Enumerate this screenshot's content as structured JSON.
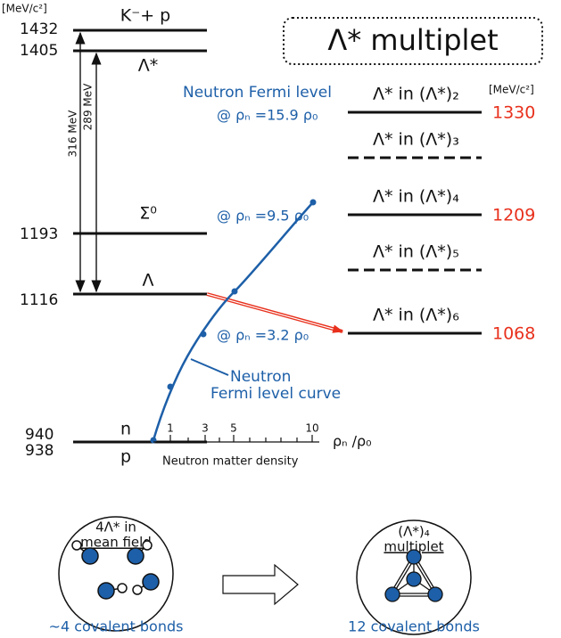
{
  "unit_left": "[MeV/c²]",
  "unit_right": "[MeV/c²]",
  "title": "Λ* multiplet",
  "levels": [
    {
      "value": "1432",
      "label": "K⁻+ p"
    },
    {
      "value": "1405",
      "label": "Λ*"
    },
    {
      "value": "1193",
      "label": "Σ⁰"
    },
    {
      "value": "1116",
      "label": "Λ"
    },
    {
      "value": "940",
      "label": "n"
    },
    {
      "value": "938",
      "label": "p"
    }
  ],
  "gaps": [
    "316 MeV",
    "289 MeV"
  ],
  "multiplet": [
    {
      "label": "Λ* in (Λ*)₂",
      "value": "1330"
    },
    {
      "label": "Λ* in (Λ*)₃"
    },
    {
      "label": "Λ* in (Λ*)₄",
      "value": "1209"
    },
    {
      "label": "Λ* in (Λ*)₅"
    },
    {
      "label": "Λ* in (Λ*)₆",
      "value": "1068"
    }
  ],
  "fermi": {
    "title": "Neutron Fermi level",
    "points": [
      "@  ρₙ =15.9 ρ₀",
      "@  ρₙ =9.5 ρ₀",
      "@  ρₙ =3.2 ρ₀"
    ],
    "curve_label": [
      "Neutron",
      "Fermi level curve"
    ]
  },
  "density_axis": {
    "ticks": [
      "1",
      "3",
      "5",
      "10"
    ],
    "label": "ρₙ /ρ₀",
    "title": "Neutron matter density"
  },
  "bottom": {
    "left": {
      "lines": [
        "4Λ* in",
        "mean field"
      ],
      "caption": "~4 covalent bonds"
    },
    "right": {
      "lines": [
        "(Λ*)₄",
        "multiplet"
      ],
      "caption": "12 covalent bonds"
    }
  }
}
